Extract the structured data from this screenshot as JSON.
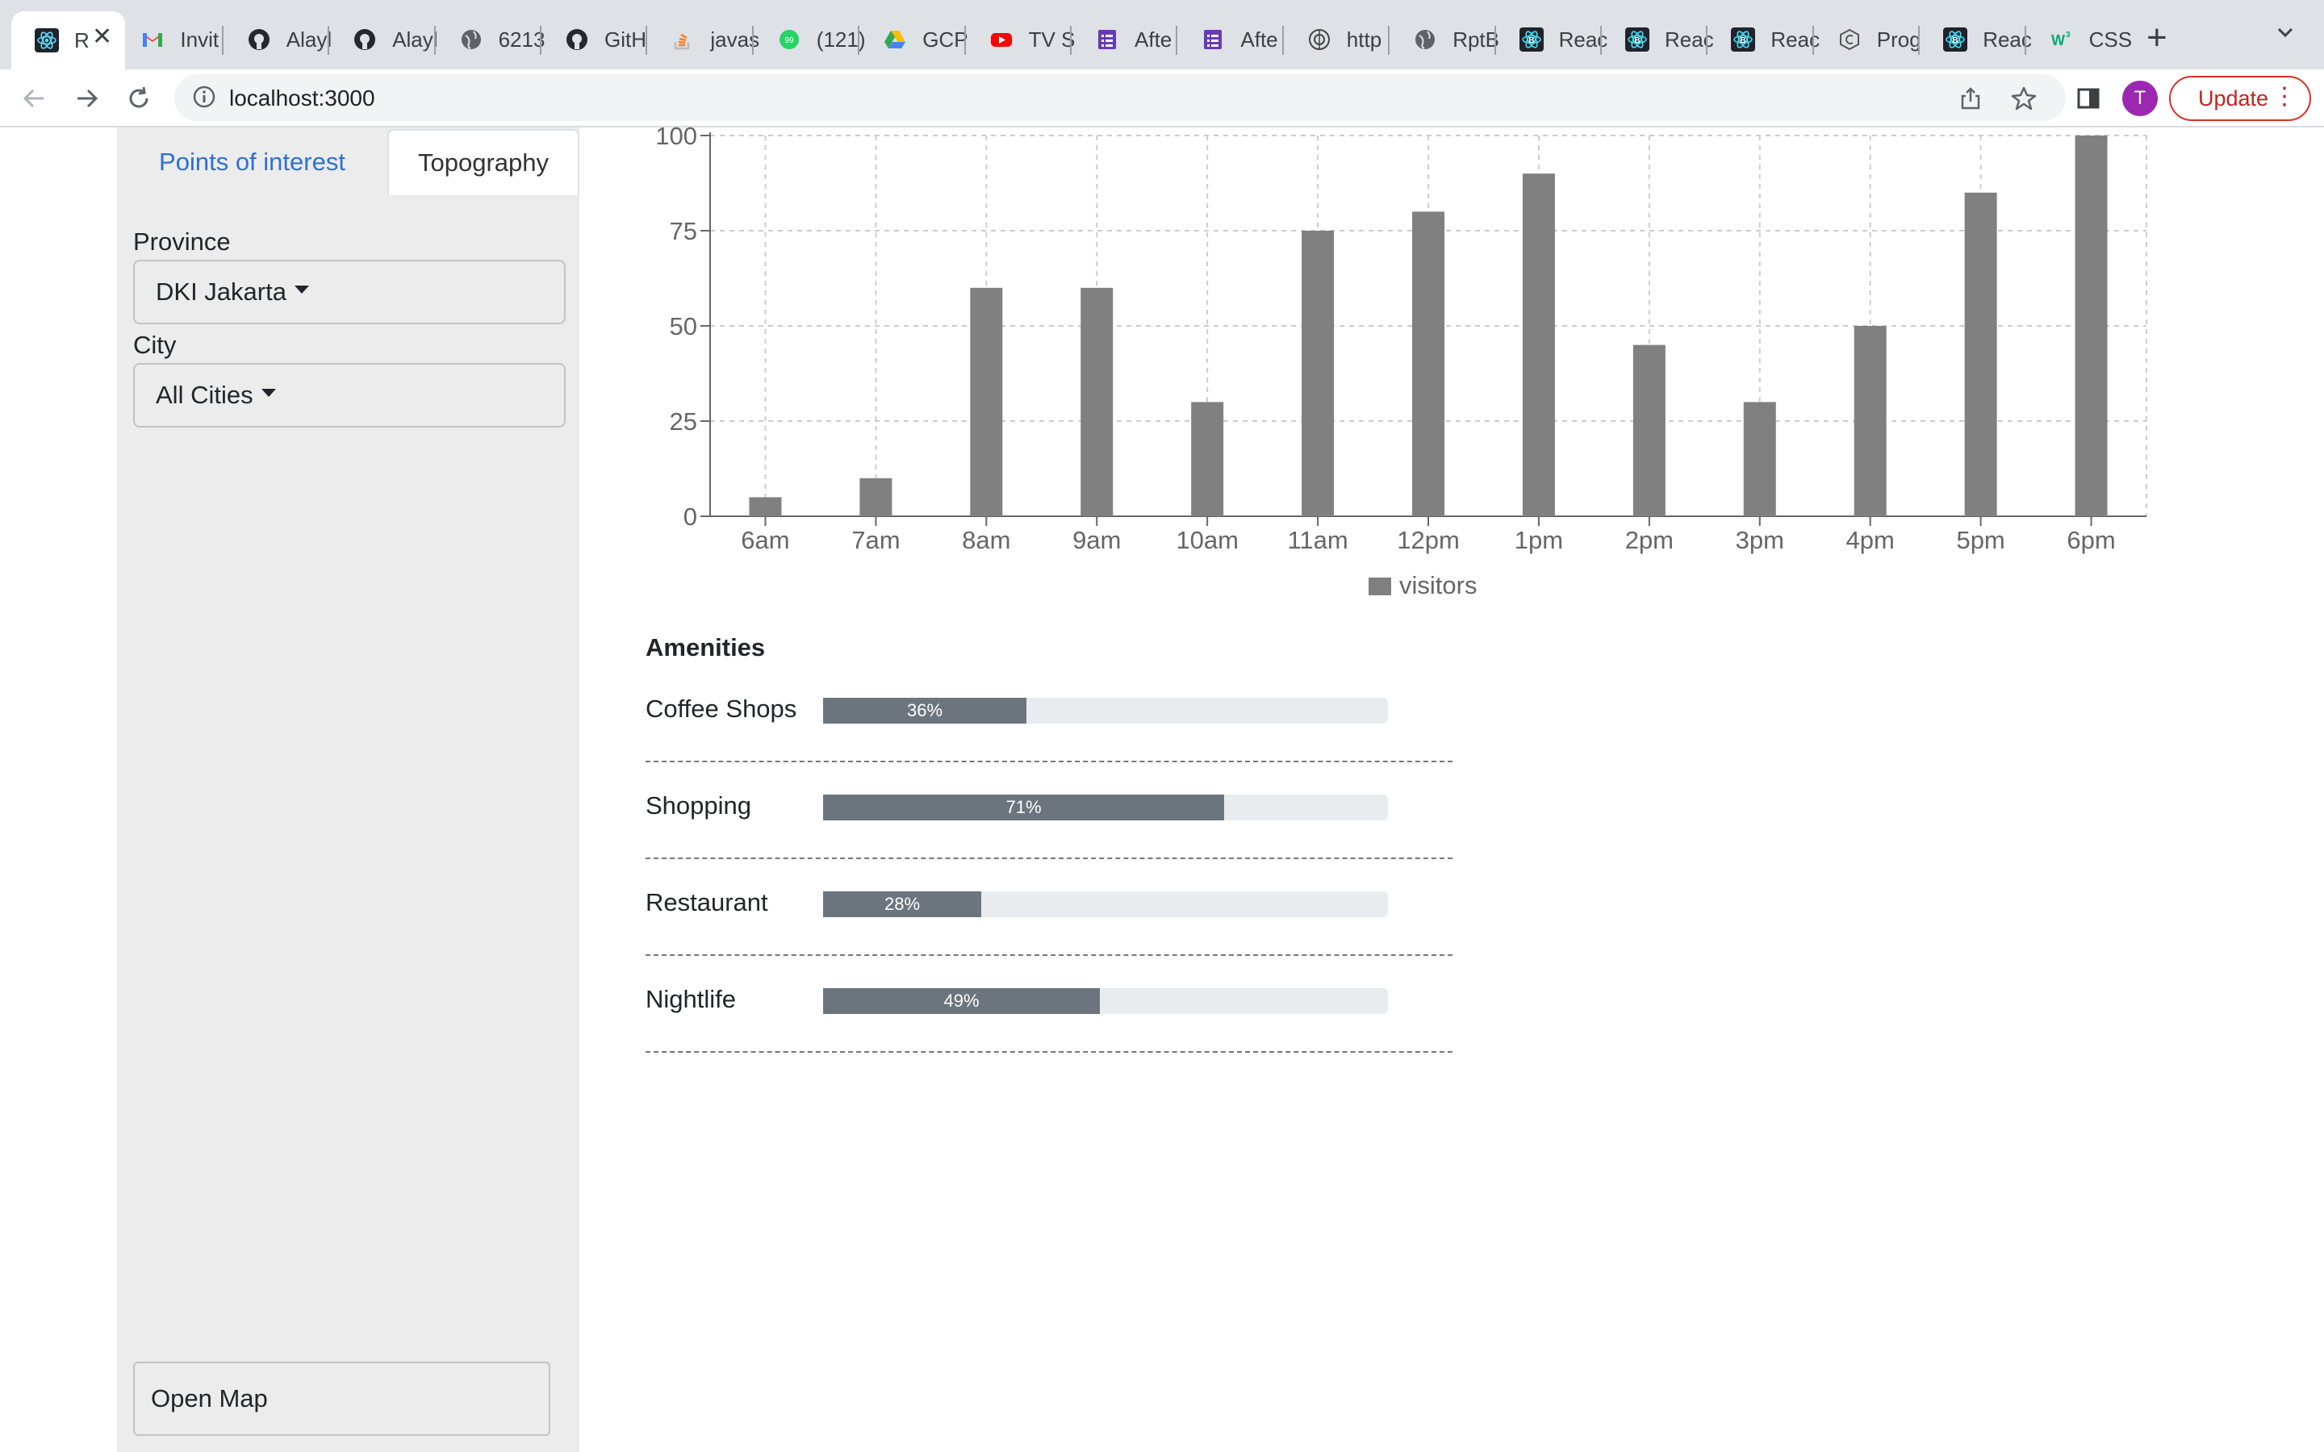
{
  "browser": {
    "tabs": [
      {
        "title": "R",
        "icon": "react-icon",
        "active": true
      },
      {
        "title": "Invit",
        "icon": "gmail-icon"
      },
      {
        "title": "Alayl",
        "icon": "github-icon"
      },
      {
        "title": "Alayl",
        "icon": "github-icon"
      },
      {
        "title": "6213",
        "icon": "globe-icon"
      },
      {
        "title": "GitH",
        "icon": "github-icon"
      },
      {
        "title": "javas",
        "icon": "stackoverflow-icon"
      },
      {
        "title": "(121)",
        "icon": "whatsapp-icon"
      },
      {
        "title": "GCP",
        "icon": "google-drive-icon"
      },
      {
        "title": "TV S",
        "icon": "youtube-icon"
      },
      {
        "title": "Afte",
        "icon": "forms-icon"
      },
      {
        "title": "Afte",
        "icon": "forms-icon"
      },
      {
        "title": "http",
        "icon": "emblem-icon"
      },
      {
        "title": "RptB",
        "icon": "globe-icon"
      },
      {
        "title": "Reac",
        "icon": "react-bootstrap-icon"
      },
      {
        "title": "Reac",
        "icon": "react-bootstrap-icon"
      },
      {
        "title": "Reac",
        "icon": "react-bootstrap-icon"
      },
      {
        "title": "Prog",
        "icon": "circle-logo-icon"
      },
      {
        "title": "Reac",
        "icon": "react-bootstrap-icon"
      },
      {
        "title": "CSS",
        "icon": "w3schools-icon"
      }
    ],
    "url": "localhost:3000",
    "avatar_letter": "T",
    "update_label": "Update"
  },
  "sidebar": {
    "tabs": [
      "Points of interest",
      "Topography"
    ],
    "active_tab": "Topography",
    "province_label": "Province",
    "province_value": "DKI Jakarta",
    "city_label": "City",
    "city_value": "All Cities",
    "open_map_label": "Open Map"
  },
  "chart_data": {
    "type": "bar",
    "categories": [
      "6am",
      "7am",
      "8am",
      "9am",
      "10am",
      "11am",
      "12pm",
      "1pm",
      "2pm",
      "3pm",
      "4pm",
      "5pm",
      "6pm"
    ],
    "series": [
      {
        "name": "visitors",
        "values": [
          5,
          10,
          60,
          60,
          30,
          75,
          80,
          90,
          45,
          30,
          50,
          85,
          100
        ]
      }
    ],
    "yticks": [
      0,
      25,
      50,
      75,
      100
    ],
    "ylim": [
      0,
      100
    ],
    "grid": true,
    "legend": "bottom-center",
    "bar_color": "#808080"
  },
  "amenities": {
    "title": "Amenities",
    "items": [
      {
        "label": "Coffee Shops",
        "value": 36,
        "text": "36%"
      },
      {
        "label": "Shopping",
        "value": 71,
        "text": "71%"
      },
      {
        "label": "Restaurant",
        "value": 28,
        "text": "28%"
      },
      {
        "label": "Nightlife",
        "value": 49,
        "text": "49%"
      }
    ]
  }
}
